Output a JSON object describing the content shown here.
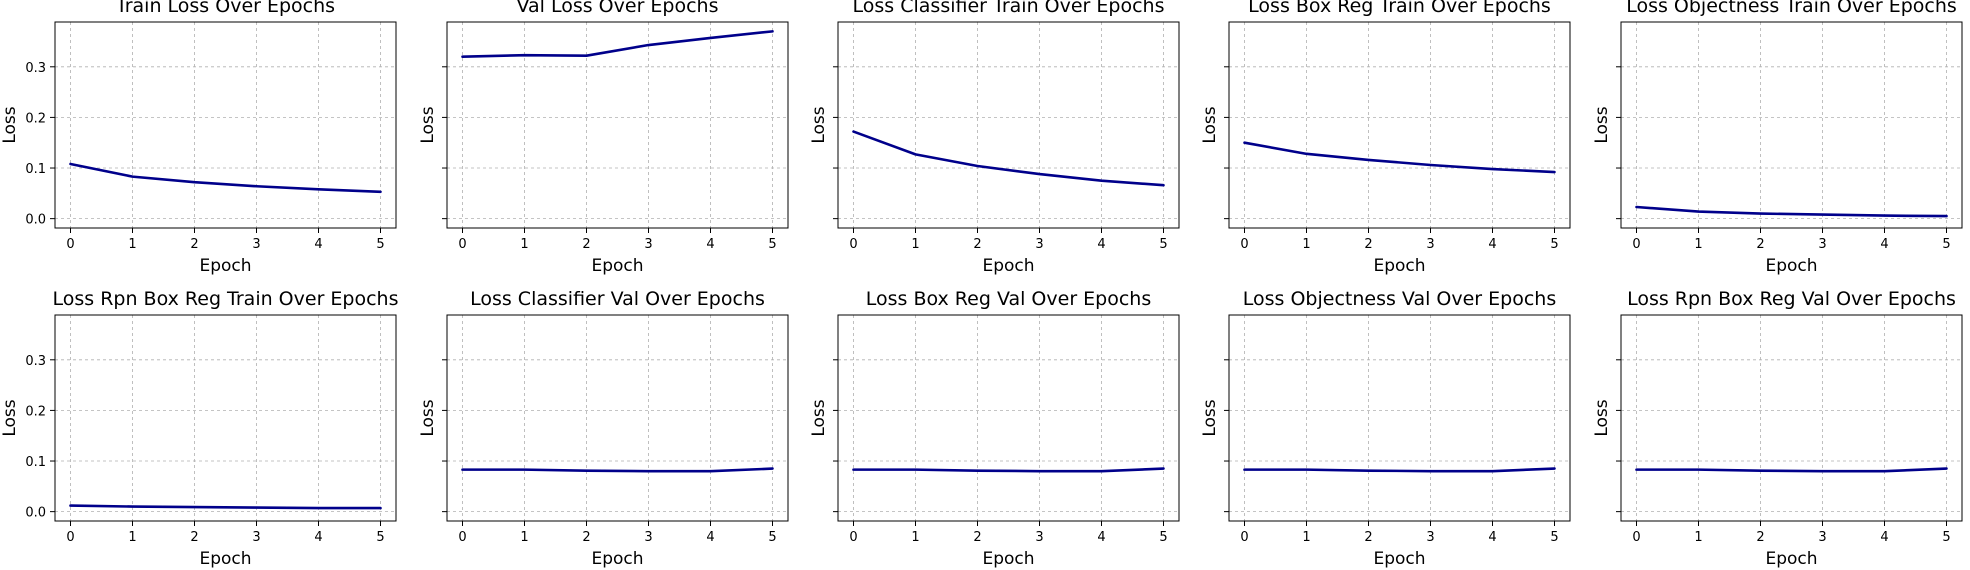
{
  "figure": {
    "line_color": "#00008b",
    "grid_color": "#b0b0b0",
    "sharey": true,
    "ylim": [
      -0.0185,
      0.3885
    ],
    "yticks": [
      0.0,
      0.1,
      0.2,
      0.3
    ],
    "ytick_labels": [
      "0.0",
      "0.1",
      "0.2",
      "0.3"
    ],
    "xlim": [
      -0.25,
      5.25
    ],
    "xticks": [
      0,
      1,
      2,
      3,
      4,
      5
    ],
    "xtick_labels": [
      "0",
      "1",
      "2",
      "3",
      "4",
      "5"
    ]
  },
  "chart_data": [
    {
      "type": "line",
      "title": "Train Loss Over Epochs",
      "xlabel": "Epoch",
      "ylabel": "Loss",
      "grid": true,
      "x": [
        0,
        1,
        2,
        3,
        4,
        5
      ],
      "y": [
        0.108,
        0.083,
        0.072,
        0.064,
        0.058,
        0.053
      ]
    },
    {
      "type": "line",
      "title": "Val Loss Over Epochs",
      "xlabel": "Epoch",
      "ylabel": "Loss",
      "grid": true,
      "x": [
        0,
        1,
        2,
        3,
        4,
        5
      ],
      "y": [
        0.32,
        0.323,
        0.322,
        0.343,
        0.357,
        0.37
      ]
    },
    {
      "type": "line",
      "title": "Loss Classifier Train Over Epochs",
      "xlabel": "Epoch",
      "ylabel": "Loss",
      "grid": true,
      "x": [
        0,
        1,
        2,
        3,
        4,
        5
      ],
      "y": [
        0.172,
        0.127,
        0.104,
        0.088,
        0.075,
        0.066
      ]
    },
    {
      "type": "line",
      "title": "Loss Box Reg Train Over Epochs",
      "xlabel": "Epoch",
      "ylabel": "Loss",
      "grid": true,
      "x": [
        0,
        1,
        2,
        3,
        4,
        5
      ],
      "y": [
        0.15,
        0.128,
        0.116,
        0.106,
        0.098,
        0.092
      ]
    },
    {
      "type": "line",
      "title": "Loss Objectness Train Over Epochs",
      "xlabel": "Epoch",
      "ylabel": "Loss",
      "grid": true,
      "x": [
        0,
        1,
        2,
        3,
        4,
        5
      ],
      "y": [
        0.023,
        0.014,
        0.01,
        0.008,
        0.006,
        0.005
      ]
    },
    {
      "type": "line",
      "title": "Loss Rpn Box Reg Train Over Epochs",
      "xlabel": "Epoch",
      "ylabel": "Loss",
      "grid": true,
      "x": [
        0,
        1,
        2,
        3,
        4,
        5
      ],
      "y": [
        0.012,
        0.01,
        0.009,
        0.008,
        0.007,
        0.007
      ]
    },
    {
      "type": "line",
      "title": "Loss Classifier Val Over Epochs",
      "xlabel": "Epoch",
      "ylabel": "Loss",
      "grid": true,
      "x": [
        0,
        1,
        2,
        3,
        4,
        5
      ],
      "y": [
        0.083,
        0.083,
        0.081,
        0.08,
        0.08,
        0.085
      ]
    },
    {
      "type": "line",
      "title": "Loss Box Reg Val Over Epochs",
      "xlabel": "Epoch",
      "ylabel": "Loss",
      "grid": true,
      "x": [
        0,
        1,
        2,
        3,
        4,
        5
      ],
      "y": [
        0.083,
        0.083,
        0.081,
        0.08,
        0.08,
        0.085
      ]
    },
    {
      "type": "line",
      "title": "Loss Objectness Val Over Epochs",
      "xlabel": "Epoch",
      "ylabel": "Loss",
      "grid": true,
      "x": [
        0,
        1,
        2,
        3,
        4,
        5
      ],
      "y": [
        0.083,
        0.083,
        0.081,
        0.08,
        0.08,
        0.085
      ]
    },
    {
      "type": "line",
      "title": "Loss Rpn Box Reg Val Over Epochs",
      "xlabel": "Epoch",
      "ylabel": "Loss",
      "grid": true,
      "x": [
        0,
        1,
        2,
        3,
        4,
        5
      ],
      "y": [
        0.083,
        0.083,
        0.081,
        0.08,
        0.08,
        0.085
      ]
    }
  ]
}
